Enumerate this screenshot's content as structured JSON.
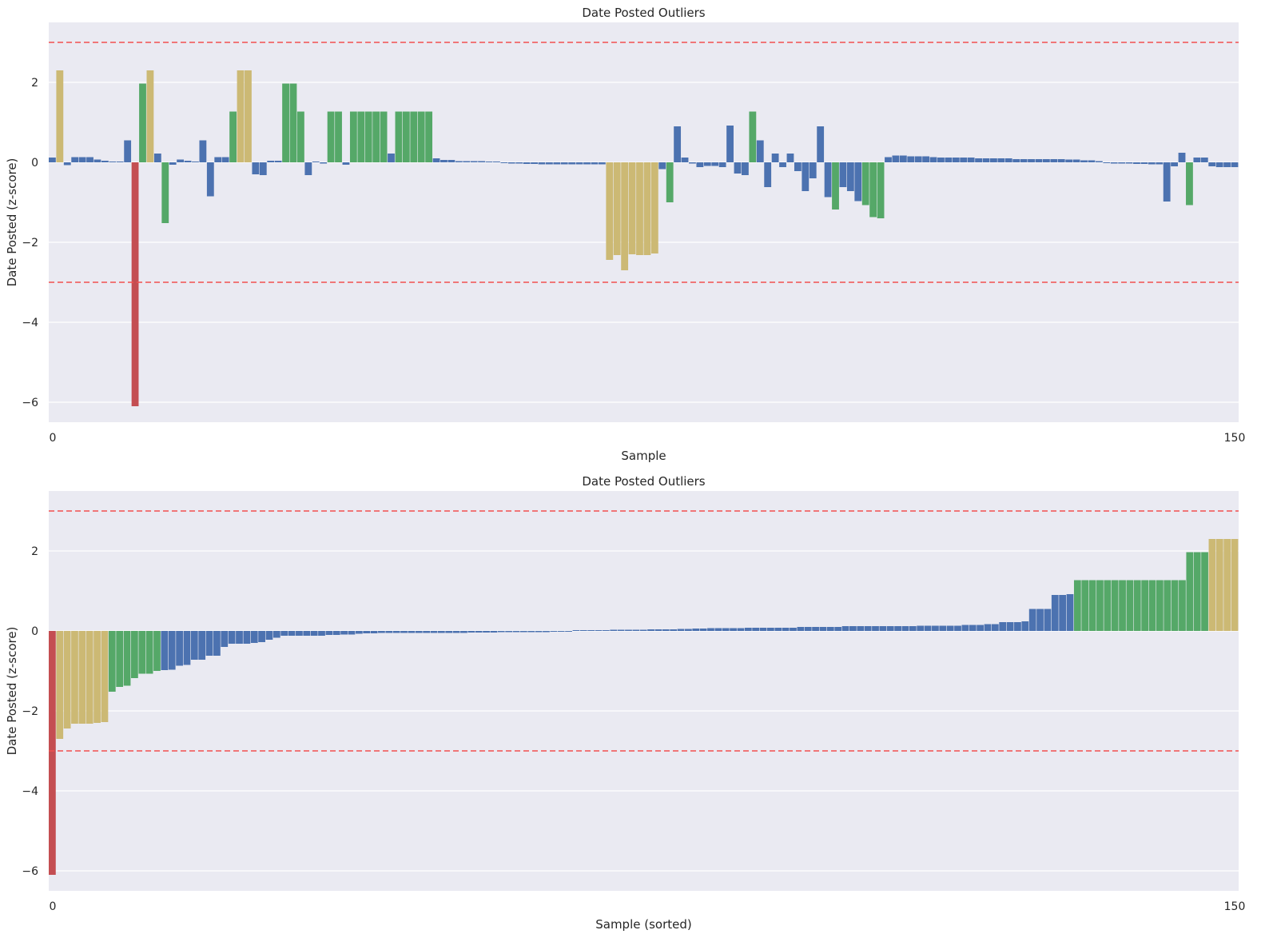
{
  "chart_data": [
    {
      "type": "bar",
      "title": "Date Posted Outliers",
      "xlabel": "Sample",
      "ylabel": "Date Posted (z-score)",
      "xlim": [
        0,
        150
      ],
      "ylim": [
        -6.5,
        3.5
      ],
      "x_ticks": [
        "0",
        "150"
      ],
      "y_ticks": [
        {
          "v": 2,
          "label": "2"
        },
        {
          "v": 0,
          "label": "0"
        },
        {
          "v": -2,
          "label": "−2"
        },
        {
          "v": -4,
          "label": "−4"
        },
        {
          "v": -6,
          "label": "−6"
        }
      ],
      "thresholds": [
        3,
        -3
      ],
      "grid": true,
      "colors": {
        "normal": "#4c72b0",
        "moderate": "#55a868",
        "high": "#ccb974",
        "extreme": "#c44e52",
        "threshold": "#f25050",
        "background": "#eaeaf2"
      },
      "values": [
        0.12,
        2.3,
        -0.07,
        0.13,
        0.13,
        0.13,
        0.07,
        0.04,
        0.02,
        0.02,
        0.55,
        -6.1,
        1.97,
        2.3,
        0.22,
        -1.52,
        -0.06,
        0.07,
        0.04,
        0.02,
        0.55,
        -0.85,
        0.13,
        0.13,
        1.27,
        2.3,
        2.3,
        -0.3,
        -0.32,
        0.04,
        0.04,
        1.97,
        1.97,
        1.27,
        -0.32,
        0.02,
        -0.03,
        1.27,
        1.27,
        -0.06,
        1.27,
        1.27,
        1.27,
        1.27,
        1.27,
        0.22,
        1.27,
        1.27,
        1.27,
        1.27,
        1.27,
        0.1,
        0.06,
        0.06,
        0.03,
        0.03,
        0.03,
        0.03,
        0.02,
        0.02,
        -0.02,
        -0.03,
        -0.03,
        -0.04,
        -0.04,
        -0.05,
        -0.05,
        -0.05,
        -0.05,
        -0.05,
        -0.05,
        -0.05,
        -0.05,
        -0.05,
        -2.44,
        -2.32,
        -2.7,
        -2.3,
        -2.32,
        -2.32,
        -2.28,
        -0.17,
        -1.0,
        0.9,
        0.12,
        -0.03,
        -0.12,
        -0.09,
        -0.09,
        -0.12,
        0.92,
        -0.28,
        -0.32,
        1.27,
        0.55,
        -0.62,
        0.22,
        -0.12,
        0.22,
        -0.22,
        -0.72,
        -0.4,
        0.9,
        -0.87,
        -1.18,
        -0.62,
        -0.72,
        -0.97,
        -1.07,
        -1.37,
        -1.4,
        0.13,
        0.17,
        0.17,
        0.15,
        0.15,
        0.15,
        0.13,
        0.12,
        0.12,
        0.12,
        0.12,
        0.12,
        0.1,
        0.1,
        0.1,
        0.1,
        0.1,
        0.08,
        0.08,
        0.08,
        0.08,
        0.08,
        0.08,
        0.08,
        0.07,
        0.07,
        0.05,
        0.05,
        0.03,
        -0.02,
        -0.03,
        -0.03,
        -0.03,
        -0.04,
        -0.04,
        -0.05,
        -0.05,
        -0.98,
        -0.1,
        0.24,
        -1.07,
        0.12,
        0.12,
        -0.1,
        -0.12,
        -0.12,
        -0.12
      ]
    },
    {
      "type": "bar",
      "title": "Date Posted Outliers",
      "xlabel": "Sample (sorted)",
      "ylabel": "Date Posted (z-score)",
      "xlim": [
        0,
        150
      ],
      "ylim": [
        -6.5,
        3.5
      ],
      "x_ticks": [
        "0",
        "150"
      ],
      "y_ticks": [
        {
          "v": 2,
          "label": "2"
        },
        {
          "v": 0,
          "label": "0"
        },
        {
          "v": -2,
          "label": "−2"
        },
        {
          "v": -4,
          "label": "−4"
        },
        {
          "v": -6,
          "label": "−6"
        }
      ],
      "thresholds": [
        3,
        -3
      ],
      "grid": true,
      "colors": {
        "normal": "#4c72b0",
        "moderate": "#55a868",
        "high": "#ccb974",
        "extreme": "#c44e52",
        "threshold": "#f25050",
        "background": "#eaeaf2"
      },
      "values": [
        -6.1,
        -2.7,
        -2.44,
        -2.32,
        -2.32,
        -2.32,
        -2.3,
        -2.28,
        -1.52,
        -1.4,
        -1.37,
        -1.18,
        -1.07,
        -1.07,
        -1.0,
        -0.98,
        -0.97,
        -0.87,
        -0.85,
        -0.72,
        -0.72,
        -0.62,
        -0.62,
        -0.4,
        -0.32,
        -0.32,
        -0.32,
        -0.3,
        -0.28,
        -0.22,
        -0.17,
        -0.12,
        -0.12,
        -0.12,
        -0.12,
        -0.12,
        -0.12,
        -0.1,
        -0.1,
        -0.09,
        -0.09,
        -0.07,
        -0.06,
        -0.06,
        -0.05,
        -0.05,
        -0.05,
        -0.05,
        -0.05,
        -0.05,
        -0.05,
        -0.05,
        -0.05,
        -0.05,
        -0.05,
        -0.05,
        -0.04,
        -0.04,
        -0.04,
        -0.04,
        -0.03,
        -0.03,
        -0.03,
        -0.03,
        -0.03,
        -0.03,
        -0.03,
        -0.02,
        -0.02,
        -0.02,
        0.02,
        0.02,
        0.02,
        0.02,
        0.02,
        0.03,
        0.03,
        0.03,
        0.03,
        0.03,
        0.04,
        0.04,
        0.04,
        0.04,
        0.05,
        0.05,
        0.06,
        0.06,
        0.07,
        0.07,
        0.07,
        0.07,
        0.07,
        0.08,
        0.08,
        0.08,
        0.08,
        0.08,
        0.08,
        0.08,
        0.1,
        0.1,
        0.1,
        0.1,
        0.1,
        0.1,
        0.12,
        0.12,
        0.12,
        0.12,
        0.12,
        0.12,
        0.12,
        0.12,
        0.12,
        0.12,
        0.13,
        0.13,
        0.13,
        0.13,
        0.13,
        0.13,
        0.15,
        0.15,
        0.15,
        0.17,
        0.17,
        0.22,
        0.22,
        0.22,
        0.24,
        0.55,
        0.55,
        0.55,
        0.9,
        0.9,
        0.92,
        1.27,
        1.27,
        1.27,
        1.27,
        1.27,
        1.27,
        1.27,
        1.27,
        1.27,
        1.27,
        1.27,
        1.27,
        1.27,
        1.27,
        1.27,
        1.97,
        1.97,
        1.97,
        2.3,
        2.3,
        2.3,
        2.3
      ]
    }
  ]
}
